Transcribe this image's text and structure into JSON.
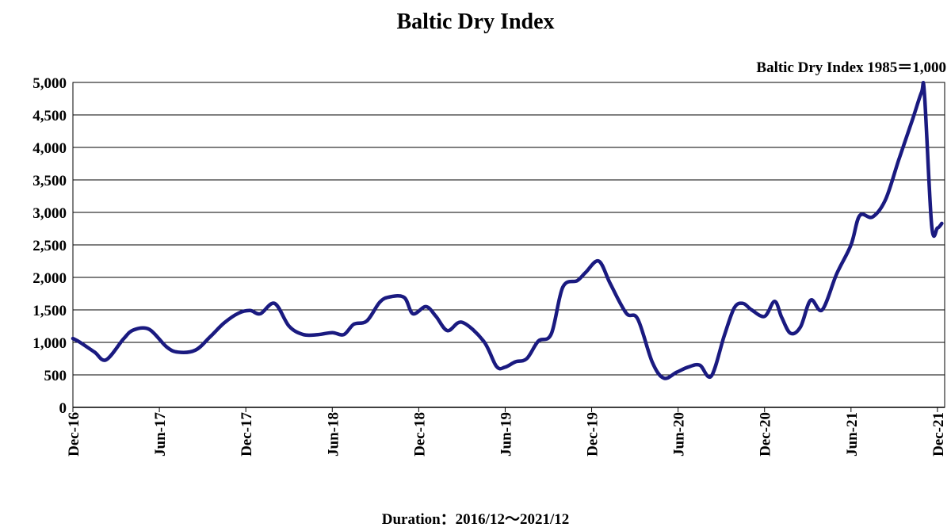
{
  "chart_data": {
    "type": "line",
    "title": "Baltic Dry Index",
    "note": "Baltic Dry Index 1985＝1,000",
    "footer": "Duration：2016/12～2021/12",
    "xlabel": "",
    "ylabel": "",
    "ylim": [
      0,
      5000
    ],
    "xlim": [
      0,
      60.5
    ],
    "y_ticks": [
      0,
      500,
      1000,
      1500,
      2000,
      2500,
      3000,
      3500,
      4000,
      4500,
      5000
    ],
    "y_tick_labels": [
      "0",
      "500",
      "1,000",
      "1,500",
      "2,000",
      "2,500",
      "3,000",
      "3,500",
      "4,000",
      "4,500",
      "5,000"
    ],
    "x_ticks": [
      {
        "label": "Dec-16",
        "month": 0
      },
      {
        "label": "Jun-17",
        "month": 6
      },
      {
        "label": "Dec-17",
        "month": 12
      },
      {
        "label": "Jun-18",
        "month": 18
      },
      {
        "label": "Dec-18",
        "month": 24
      },
      {
        "label": "Jun-19",
        "month": 30
      },
      {
        "label": "Dec-19",
        "month": 36
      },
      {
        "label": "Jun-20",
        "month": 42
      },
      {
        "label": "Dec-20",
        "month": 48
      },
      {
        "label": "Jun-21",
        "month": 54
      },
      {
        "label": "Dec-21",
        "month": 60
      }
    ],
    "grid": true,
    "series": [
      {
        "color": "#1a1a80",
        "x": [
          0,
          0.5,
          1.5,
          2.3,
          3.5,
          4.2,
          5.3,
          6.5,
          7.3,
          8.5,
          9.5,
          10.5,
          11.5,
          12.3,
          13,
          14,
          15,
          16,
          17,
          18,
          18.8,
          19.5,
          20.4,
          21.3,
          22,
          23,
          23.6,
          24.5,
          25.2,
          26,
          27,
          28.5,
          29.4,
          30,
          30.7,
          31.5,
          32.3,
          33.2,
          34,
          35,
          35.6,
          36.5,
          37.3,
          38.4,
          39.2,
          40.2,
          41,
          41.9,
          42.7,
          43.5,
          44.3,
          45.2,
          45.9,
          46.5,
          47.1,
          48,
          48.7,
          49.2,
          49.8,
          50.5,
          51.2,
          52,
          53,
          54,
          54.6,
          55.5,
          56.4,
          57.3,
          58.3,
          58.9,
          59.1,
          59.6,
          60,
          60.3
        ],
        "y": [
          1060,
          1000,
          850,
          730,
          1050,
          1190,
          1200,
          930,
          850,
          880,
          1080,
          1300,
          1450,
          1490,
          1440,
          1600,
          1250,
          1120,
          1120,
          1150,
          1120,
          1280,
          1330,
          1620,
          1700,
          1690,
          1440,
          1550,
          1400,
          1180,
          1310,
          1020,
          630,
          620,
          700,
          750,
          1020,
          1130,
          1850,
          1950,
          2080,
          2250,
          1900,
          1450,
          1360,
          700,
          450,
          540,
          620,
          650,
          480,
          1100,
          1530,
          1600,
          1500,
          1400,
          1630,
          1380,
          1140,
          1240,
          1650,
          1500,
          2050,
          2500,
          2950,
          2930,
          3200,
          3800,
          4450,
          4850,
          4820,
          2800,
          2760,
          2830
        ]
      }
    ]
  }
}
